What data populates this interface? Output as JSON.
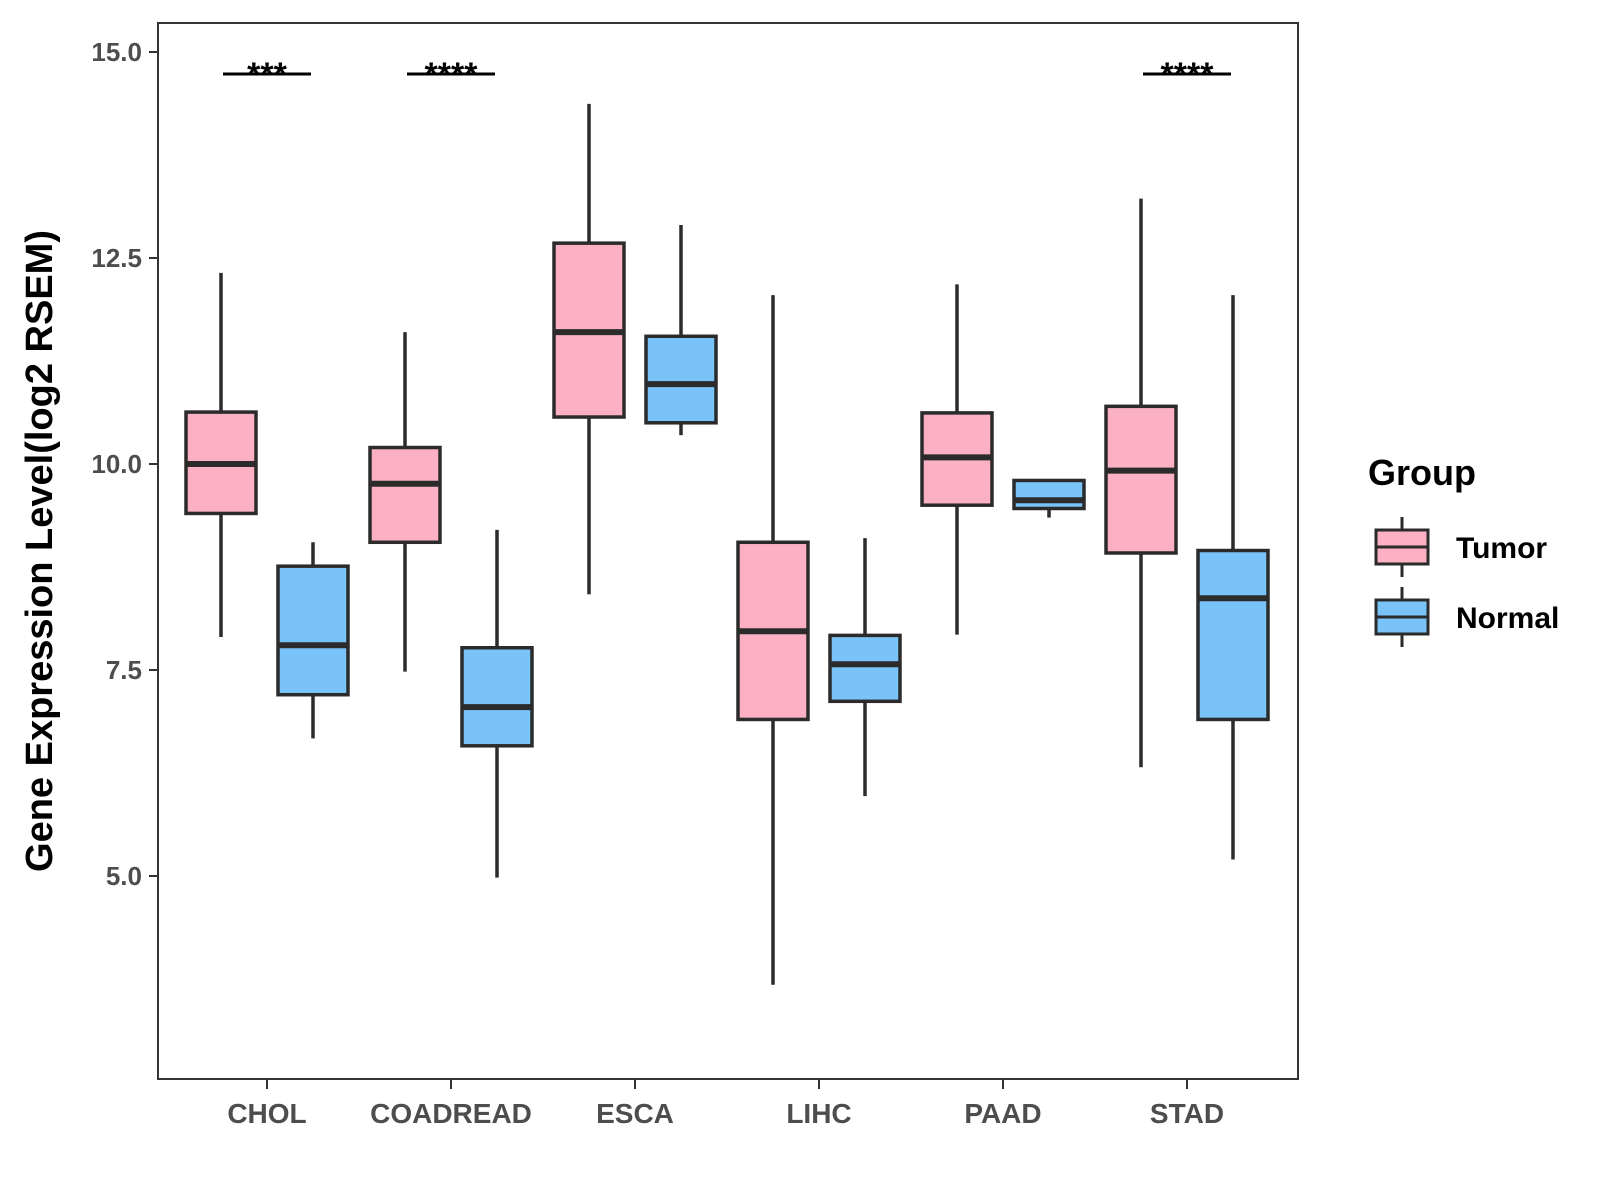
{
  "chart_data": {
    "type": "boxplot",
    "title": "",
    "xlabel": "",
    "ylabel": "Gene Expression Level(log2 RSEM)",
    "ylim": [
      2.5,
      15.35
    ],
    "yticks": [
      5.0,
      7.5,
      10.0,
      12.5,
      15.0
    ],
    "ytick_labels": [
      "5.0",
      "7.5",
      "10.0",
      "12.5",
      "15.0"
    ],
    "categories": [
      "CHOL",
      "COADREAD",
      "ESCA",
      "LIHC",
      "PAAD",
      "STAD"
    ],
    "legend": {
      "title": "Group",
      "position": "right",
      "entries": [
        {
          "name": "Tumor",
          "color": "#FBB1C3"
        },
        {
          "name": "Normal",
          "color": "#7AC3F9"
        }
      ]
    },
    "series": [
      {
        "name": "Tumor",
        "color": "#FBB1C3",
        "boxes": [
          {
            "min": 7.9,
            "q1": 9.4,
            "median": 10.0,
            "q3": 10.63,
            "max": 12.32
          },
          {
            "min": 7.48,
            "q1": 9.05,
            "median": 9.76,
            "q3": 10.2,
            "max": 11.6
          },
          {
            "min": 8.42,
            "q1": 10.57,
            "median": 11.6,
            "q3": 12.68,
            "max": 14.37
          },
          {
            "min": 3.68,
            "q1": 6.9,
            "median": 7.97,
            "q3": 9.05,
            "max": 12.05
          },
          {
            "min": 7.93,
            "q1": 9.5,
            "median": 10.08,
            "q3": 10.62,
            "max": 12.18
          },
          {
            "min": 6.32,
            "q1": 8.92,
            "median": 9.92,
            "q3": 10.7,
            "max": 13.22
          }
        ]
      },
      {
        "name": "Normal",
        "color": "#7AC3F9",
        "boxes": [
          {
            "min": 6.67,
            "q1": 7.2,
            "median": 7.8,
            "q3": 8.76,
            "max": 9.05
          },
          {
            "min": 4.98,
            "q1": 6.58,
            "median": 7.05,
            "q3": 7.77,
            "max": 9.2
          },
          {
            "min": 10.35,
            "q1": 10.5,
            "median": 10.97,
            "q3": 11.55,
            "max": 12.9
          },
          {
            "min": 5.97,
            "q1": 7.12,
            "median": 7.57,
            "q3": 7.92,
            "max": 9.1
          },
          {
            "min": 9.35,
            "q1": 9.46,
            "median": 9.56,
            "q3": 9.8,
            "max": 9.8
          },
          {
            "min": 5.2,
            "q1": 6.9,
            "median": 8.37,
            "q3": 8.95,
            "max": 12.05
          }
        ]
      }
    ],
    "significance": [
      {
        "category": "CHOL",
        "label": "***"
      },
      {
        "category": "COADREAD",
        "label": "****"
      },
      {
        "category": "STAD",
        "label": "****"
      }
    ]
  }
}
